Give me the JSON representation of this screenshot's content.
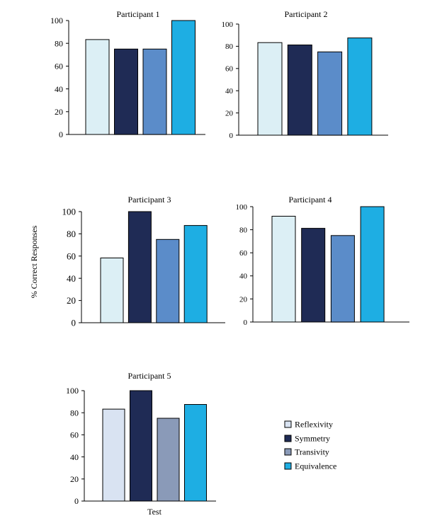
{
  "figure": {
    "ylabel": "% Correct Responses",
    "legend_items": [
      "Reflexivity",
      "Symmetry",
      "Transivity",
      "Equivalence"
    ]
  },
  "colors": {
    "reflexivity": "#dceff5",
    "symmetry": "#1f2b55",
    "transivity": "#5b8cc9",
    "equivalence": "#1eaee3",
    "reflexivity_p5": "#d9e3f2",
    "transivity_p5": "#8a9ab8"
  },
  "chart_data": [
    {
      "type": "bar",
      "title": "Participant 1",
      "categories": [
        "Reflexivity",
        "Symmetry",
        "Transivity",
        "Equivalence"
      ],
      "values": [
        83.3,
        75,
        75,
        100
      ],
      "ylim": [
        0,
        100
      ],
      "yticks": [
        "0",
        "20",
        "40",
        "60",
        "80",
        "100"
      ],
      "xlabel": ""
    },
    {
      "type": "bar",
      "title": "Participant 2",
      "categories": [
        "Reflexivity",
        "Symmetry",
        "Transivity",
        "Equivalence"
      ],
      "values": [
        83.3,
        81.2,
        75,
        87.5
      ],
      "ylim": [
        0,
        100
      ],
      "yticks": [
        "0",
        "20",
        "40",
        "60",
        "80",
        "100"
      ],
      "xlabel": ""
    },
    {
      "type": "bar",
      "title": "Participant 3",
      "categories": [
        "Reflexivity",
        "Symmetry",
        "Transivity",
        "Equivalence"
      ],
      "values": [
        58.3,
        100,
        75,
        87.5
      ],
      "ylim": [
        0,
        100
      ],
      "yticks": [
        "0",
        "20",
        "40",
        "60",
        "80",
        "100"
      ],
      "xlabel": ""
    },
    {
      "type": "bar",
      "title": "Participant 4",
      "categories": [
        "Reflexivity",
        "Symmetry",
        "Transivity",
        "Equivalence"
      ],
      "values": [
        91.7,
        81.2,
        75,
        100
      ],
      "ylim": [
        0,
        100
      ],
      "yticks": [
        "0",
        "20",
        "40",
        "60",
        "80",
        "100"
      ],
      "xlabel": ""
    },
    {
      "type": "bar",
      "title": "Participant 5",
      "categories": [
        "Reflexivity",
        "Symmetry",
        "Transivity",
        "Equivalence"
      ],
      "values": [
        83.3,
        100,
        75,
        87.5
      ],
      "ylim": [
        0,
        100
      ],
      "yticks": [
        "0",
        "20",
        "40",
        "60",
        "80",
        "100"
      ],
      "xlabel": "Test"
    }
  ]
}
